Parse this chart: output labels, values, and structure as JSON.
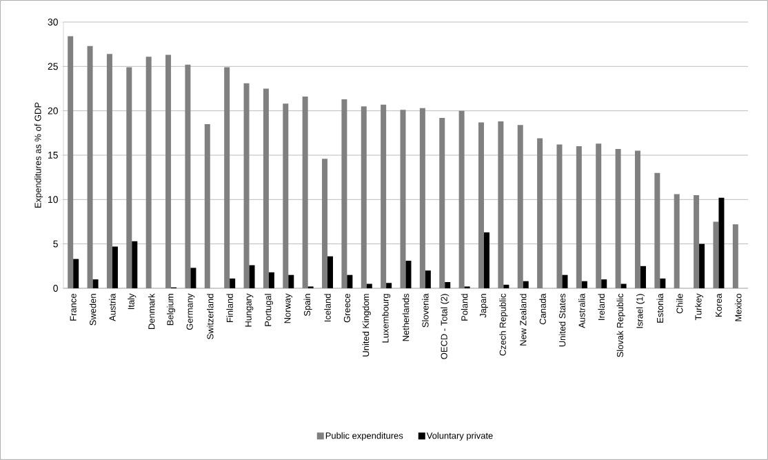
{
  "chart_data": {
    "type": "bar",
    "ylabel": "Expenditures as % of GDP",
    "categories": [
      "France",
      "Sweden",
      "Austria",
      "Italy",
      "Denmark",
      "Belgium",
      "Germany",
      "Switzerland",
      "Finland",
      "Hungary",
      "Portugal",
      "Norway",
      "Spain",
      "Iceland",
      "Greece",
      "United Kingdom",
      "Luxembourg",
      "Netherlands",
      "Slovenia",
      "OECD - Total (2)",
      "Poland",
      "Japan",
      "Czech Republic",
      "New Zealand",
      "Canada",
      "United States",
      "Australia",
      "Ireland",
      "Slovak Republic",
      "Israel (1)",
      "Estonia",
      "Chile",
      "Turkey",
      "Korea",
      "Mexico"
    ],
    "series": [
      {
        "name": "Public expenditures",
        "color": "#808080",
        "values": [
          28.4,
          27.3,
          26.4,
          24.9,
          26.1,
          26.3,
          25.2,
          18.5,
          24.9,
          23.1,
          22.5,
          20.8,
          21.6,
          14.6,
          21.3,
          20.5,
          20.7,
          20.1,
          20.3,
          19.2,
          20.0,
          18.7,
          18.8,
          18.4,
          16.9,
          16.2,
          16.0,
          16.3,
          15.7,
          15.5,
          13.0,
          10.6,
          10.5,
          7.5,
          7.2
        ]
      },
      {
        "name": "Voluntary private",
        "color": "#000000",
        "values": [
          3.3,
          1.0,
          4.7,
          5.3,
          null,
          0.1,
          2.3,
          null,
          1.1,
          2.6,
          1.8,
          1.5,
          0.2,
          3.6,
          1.5,
          0.5,
          0.6,
          3.1,
          2.0,
          0.7,
          0.2,
          6.3,
          0.4,
          0.8,
          null,
          1.5,
          0.8,
          1.0,
          0.5,
          2.5,
          1.1,
          null,
          5.0,
          10.2,
          null
        ]
      }
    ],
    "ylim": [
      0,
      30
    ],
    "yticks": [
      0,
      5,
      10,
      15,
      20,
      25,
      30
    ],
    "grid": "y",
    "legend": "bottom"
  }
}
